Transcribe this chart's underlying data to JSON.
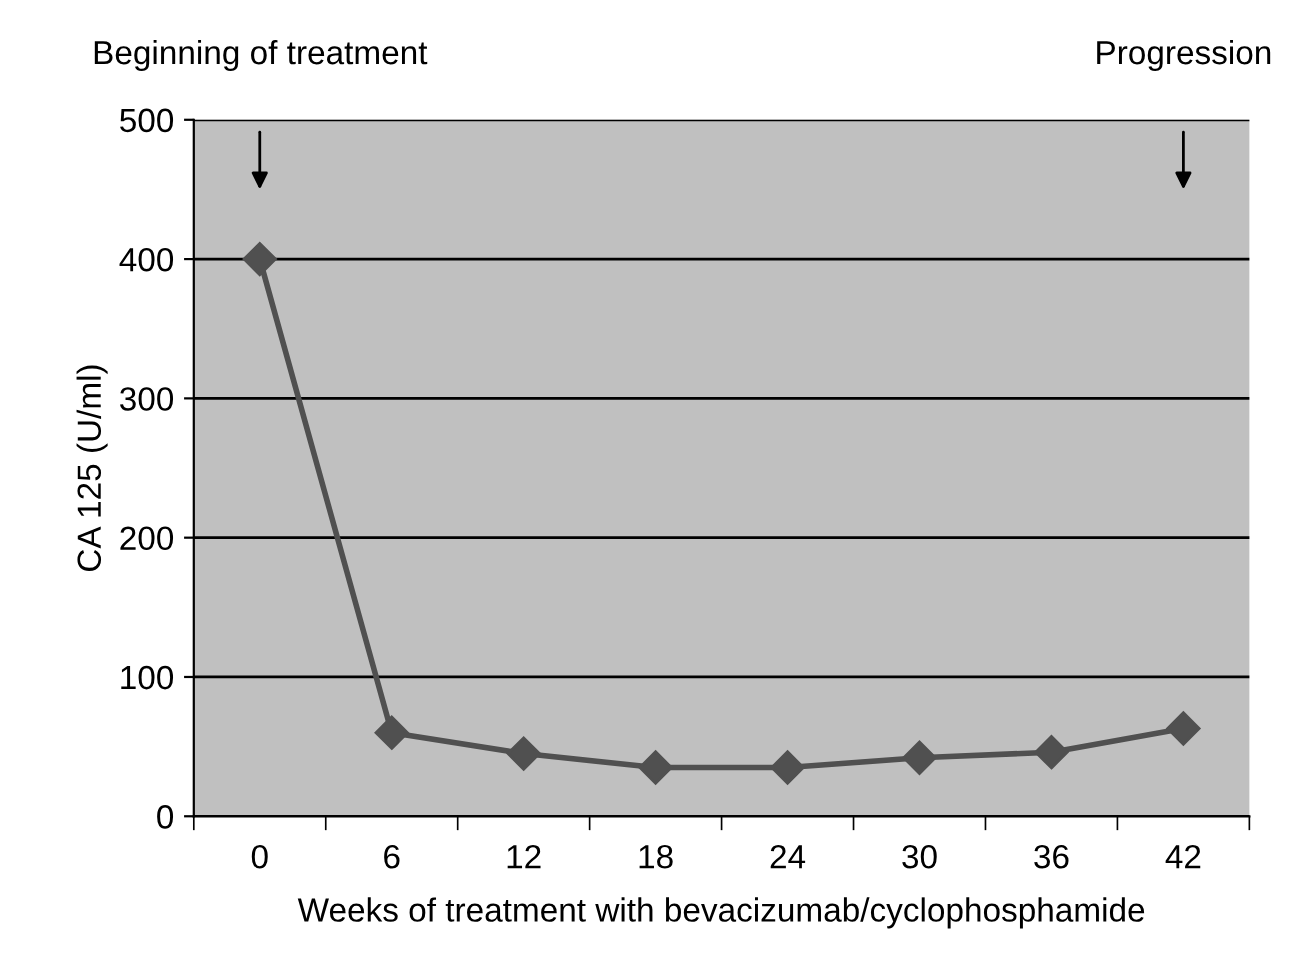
{
  "chart_data": {
    "type": "line",
    "xlabel": "Weeks of treatment with bevacizumab/cyclophosphamide",
    "ylabel": "CA 125 (U/ml)",
    "categories": [
      "0",
      "6",
      "12",
      "18",
      "24",
      "30",
      "36",
      "42"
    ],
    "series": [
      {
        "color": "#505050",
        "values": [
          400,
          60,
          45,
          35,
          35,
          42,
          46,
          63
        ]
      }
    ],
    "ylim": [
      0,
      500
    ],
    "yticks": [
      0,
      100,
      200,
      300,
      400,
      500
    ],
    "grid": "y",
    "marker": "diamond",
    "line_style": "solid",
    "annotations": [
      "Beginning of treatment",
      "Progression"
    ]
  }
}
